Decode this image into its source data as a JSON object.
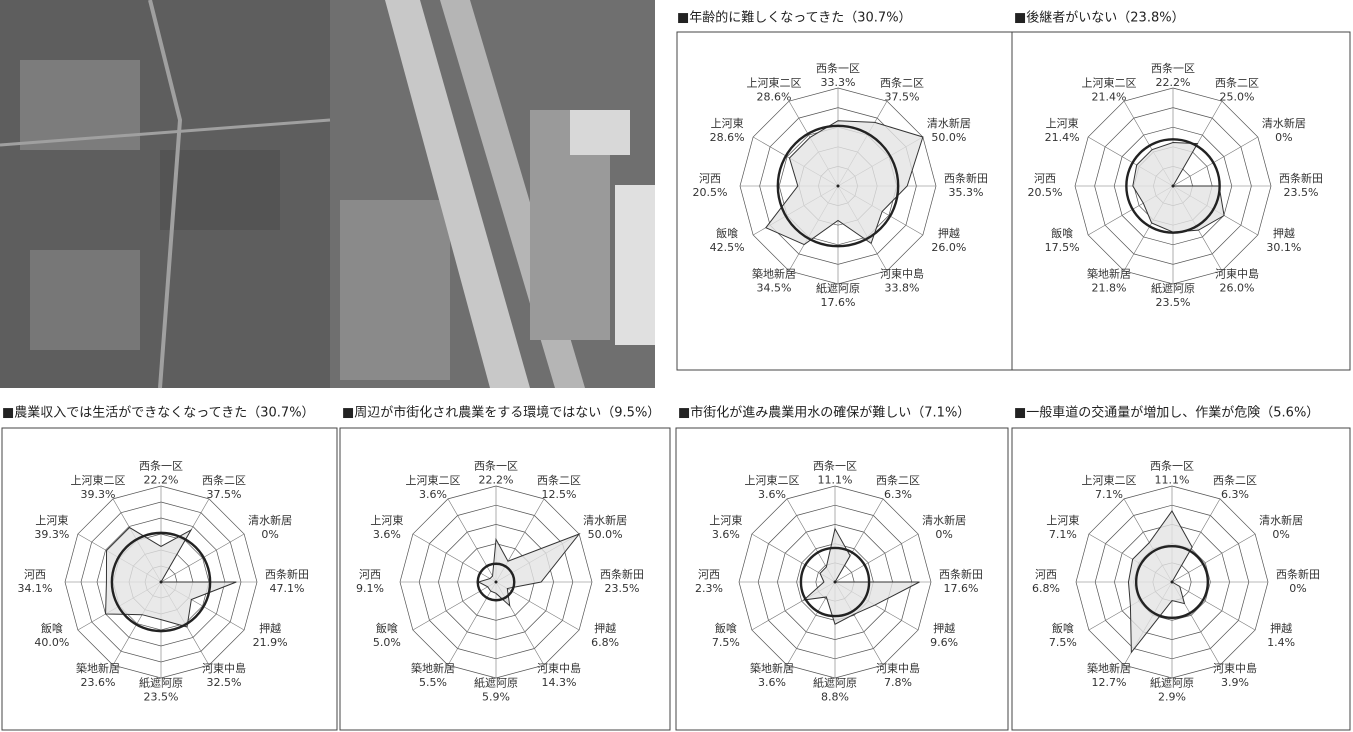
{
  "chart_data": [
    {
      "type": "radar",
      "title": "■年齢的に難しくなってきた（30.7%）",
      "categories": [
        "西条一区",
        "西条二区",
        "清水新居",
        "西条新田",
        "押越",
        "河東中島",
        "紙遮阿原",
        "築地新居",
        "飯喰",
        "河西",
        "上河東",
        "上河東二区"
      ],
      "values": [
        33.3,
        37.5,
        50.0,
        35.3,
        26.0,
        33.8,
        17.6,
        34.5,
        42.5,
        20.5,
        28.6,
        28.6
      ],
      "value_labels": [
        "33.3%",
        "37.5%",
        "50.0%",
        "35.3%",
        "26.0%",
        "33.8%",
        "17.6%",
        "34.5%",
        "42.5%",
        "20.5%",
        "28.6%",
        "28.6%"
      ],
      "average": 30.7,
      "ylim": [
        0,
        50
      ],
      "yticks": [
        10,
        20,
        30,
        40,
        50
      ],
      "color": "#e4e4e4"
    },
    {
      "type": "radar",
      "title": "■後継者がいない（23.8%）",
      "categories": [
        "西条一区",
        "西条二区",
        "清水新居",
        "西条新田",
        "押越",
        "河東中島",
        "紙遮阿原",
        "築地新居",
        "飯喰",
        "河西",
        "上河東",
        "上河東二区"
      ],
      "values": [
        22.2,
        25.0,
        0,
        23.5,
        30.1,
        26.0,
        23.5,
        21.8,
        17.5,
        20.5,
        21.4,
        21.4
      ],
      "value_labels": [
        "22.2%",
        "25.0%",
        "0%",
        "23.5%",
        "30.1%",
        "26.0%",
        "23.5%",
        "21.8%",
        "17.5%",
        "20.5%",
        "21.4%",
        "21.4%"
      ],
      "average": 23.8,
      "ylim": [
        0,
        50
      ],
      "yticks": [
        10,
        20,
        30,
        40,
        50
      ],
      "color": "#e4e4e4"
    },
    {
      "type": "radar",
      "title": "■農業収入では生活ができなくなってきた（30.7%）",
      "categories": [
        "西条一区",
        "西条二区",
        "清水新居",
        "西条新田",
        "押越",
        "河東中島",
        "紙遮阿原",
        "築地新居",
        "飯喰",
        "河西",
        "上河東",
        "上河東二区"
      ],
      "values": [
        22.2,
        37.5,
        0,
        47.1,
        21.9,
        32.5,
        23.5,
        23.6,
        40.0,
        34.1,
        39.3,
        39.3
      ],
      "value_labels": [
        "22.2%",
        "37.5%",
        "0%",
        "47.1%",
        "21.9%",
        "32.5%",
        "23.5%",
        "23.6%",
        "40.0%",
        "34.1%",
        "39.3%",
        "39.3%"
      ],
      "average": 30.7,
      "ylim": [
        0,
        60
      ],
      "yticks": [
        10,
        20,
        30,
        40,
        50,
        60
      ],
      "color": "#e4e4e4"
    },
    {
      "type": "radar",
      "title": "■周辺が市街化され農業をする環境ではない（9.5%）",
      "categories": [
        "西条一区",
        "西条二区",
        "清水新居",
        "西条新田",
        "押越",
        "河東中島",
        "紙遮阿原",
        "築地新居",
        "飯喰",
        "河西",
        "上河東",
        "上河東二区"
      ],
      "values": [
        22.2,
        12.5,
        50.0,
        23.5,
        6.8,
        14.3,
        5.9,
        5.5,
        5.0,
        9.1,
        3.6,
        3.6
      ],
      "value_labels": [
        "22.2%",
        "12.5%",
        "50.0%",
        "23.5%",
        "6.8%",
        "14.3%",
        "5.9%",
        "5.5%",
        "5.0%",
        "9.1%",
        "3.6%",
        "3.6%"
      ],
      "average": 9.5,
      "ylim": [
        0,
        50
      ],
      "yticks": [
        10,
        20,
        30,
        40,
        50
      ],
      "color": "#e4e4e4"
    },
    {
      "type": "radar",
      "title": "■市街化が進み農業用水の確保が難しい（7.1%）",
      "categories": [
        "西条一区",
        "西条二区",
        "清水新居",
        "西条新田",
        "押越",
        "河東中島",
        "紙遮阿原",
        "築地新居",
        "飯喰",
        "河西",
        "上河東",
        "上河東二区"
      ],
      "values": [
        11.1,
        6.3,
        0,
        17.6,
        9.6,
        7.8,
        8.8,
        3.6,
        7.5,
        2.3,
        3.6,
        3.6
      ],
      "value_labels": [
        "11.1%",
        "6.3%",
        "0%",
        "17.6%",
        "9.6%",
        "7.8%",
        "8.8%",
        "3.6%",
        "7.5%",
        "2.3%",
        "3.6%",
        "3.6%"
      ],
      "average": 7.1,
      "ylim": [
        0,
        20
      ],
      "yticks": [
        4,
        8,
        12,
        16,
        20
      ],
      "color": "#e4e4e4"
    },
    {
      "type": "radar",
      "title": "■一般車道の交通量が増加し、作業が危険（5.6%）",
      "categories": [
        "西条一区",
        "西条二区",
        "清水新居",
        "西条新田",
        "押越",
        "河東中島",
        "紙遮阿原",
        "築地新居",
        "飯喰",
        "河西",
        "上河東",
        "上河東二区"
      ],
      "values": [
        11.1,
        6.3,
        0,
        0,
        1.4,
        3.9,
        2.9,
        12.7,
        7.5,
        6.8,
        7.1,
        7.1
      ],
      "value_labels": [
        "11.1%",
        "6.3%",
        "0%",
        "0%",
        "1.4%",
        "3.9%",
        "2.9%",
        "12.7%",
        "7.5%",
        "6.8%",
        "7.1%",
        "7.1%"
      ],
      "average": 5.6,
      "ylim": [
        0,
        15
      ],
      "yticks": [
        3,
        6,
        9,
        12,
        15
      ],
      "color": "#e4e4e4"
    }
  ]
}
